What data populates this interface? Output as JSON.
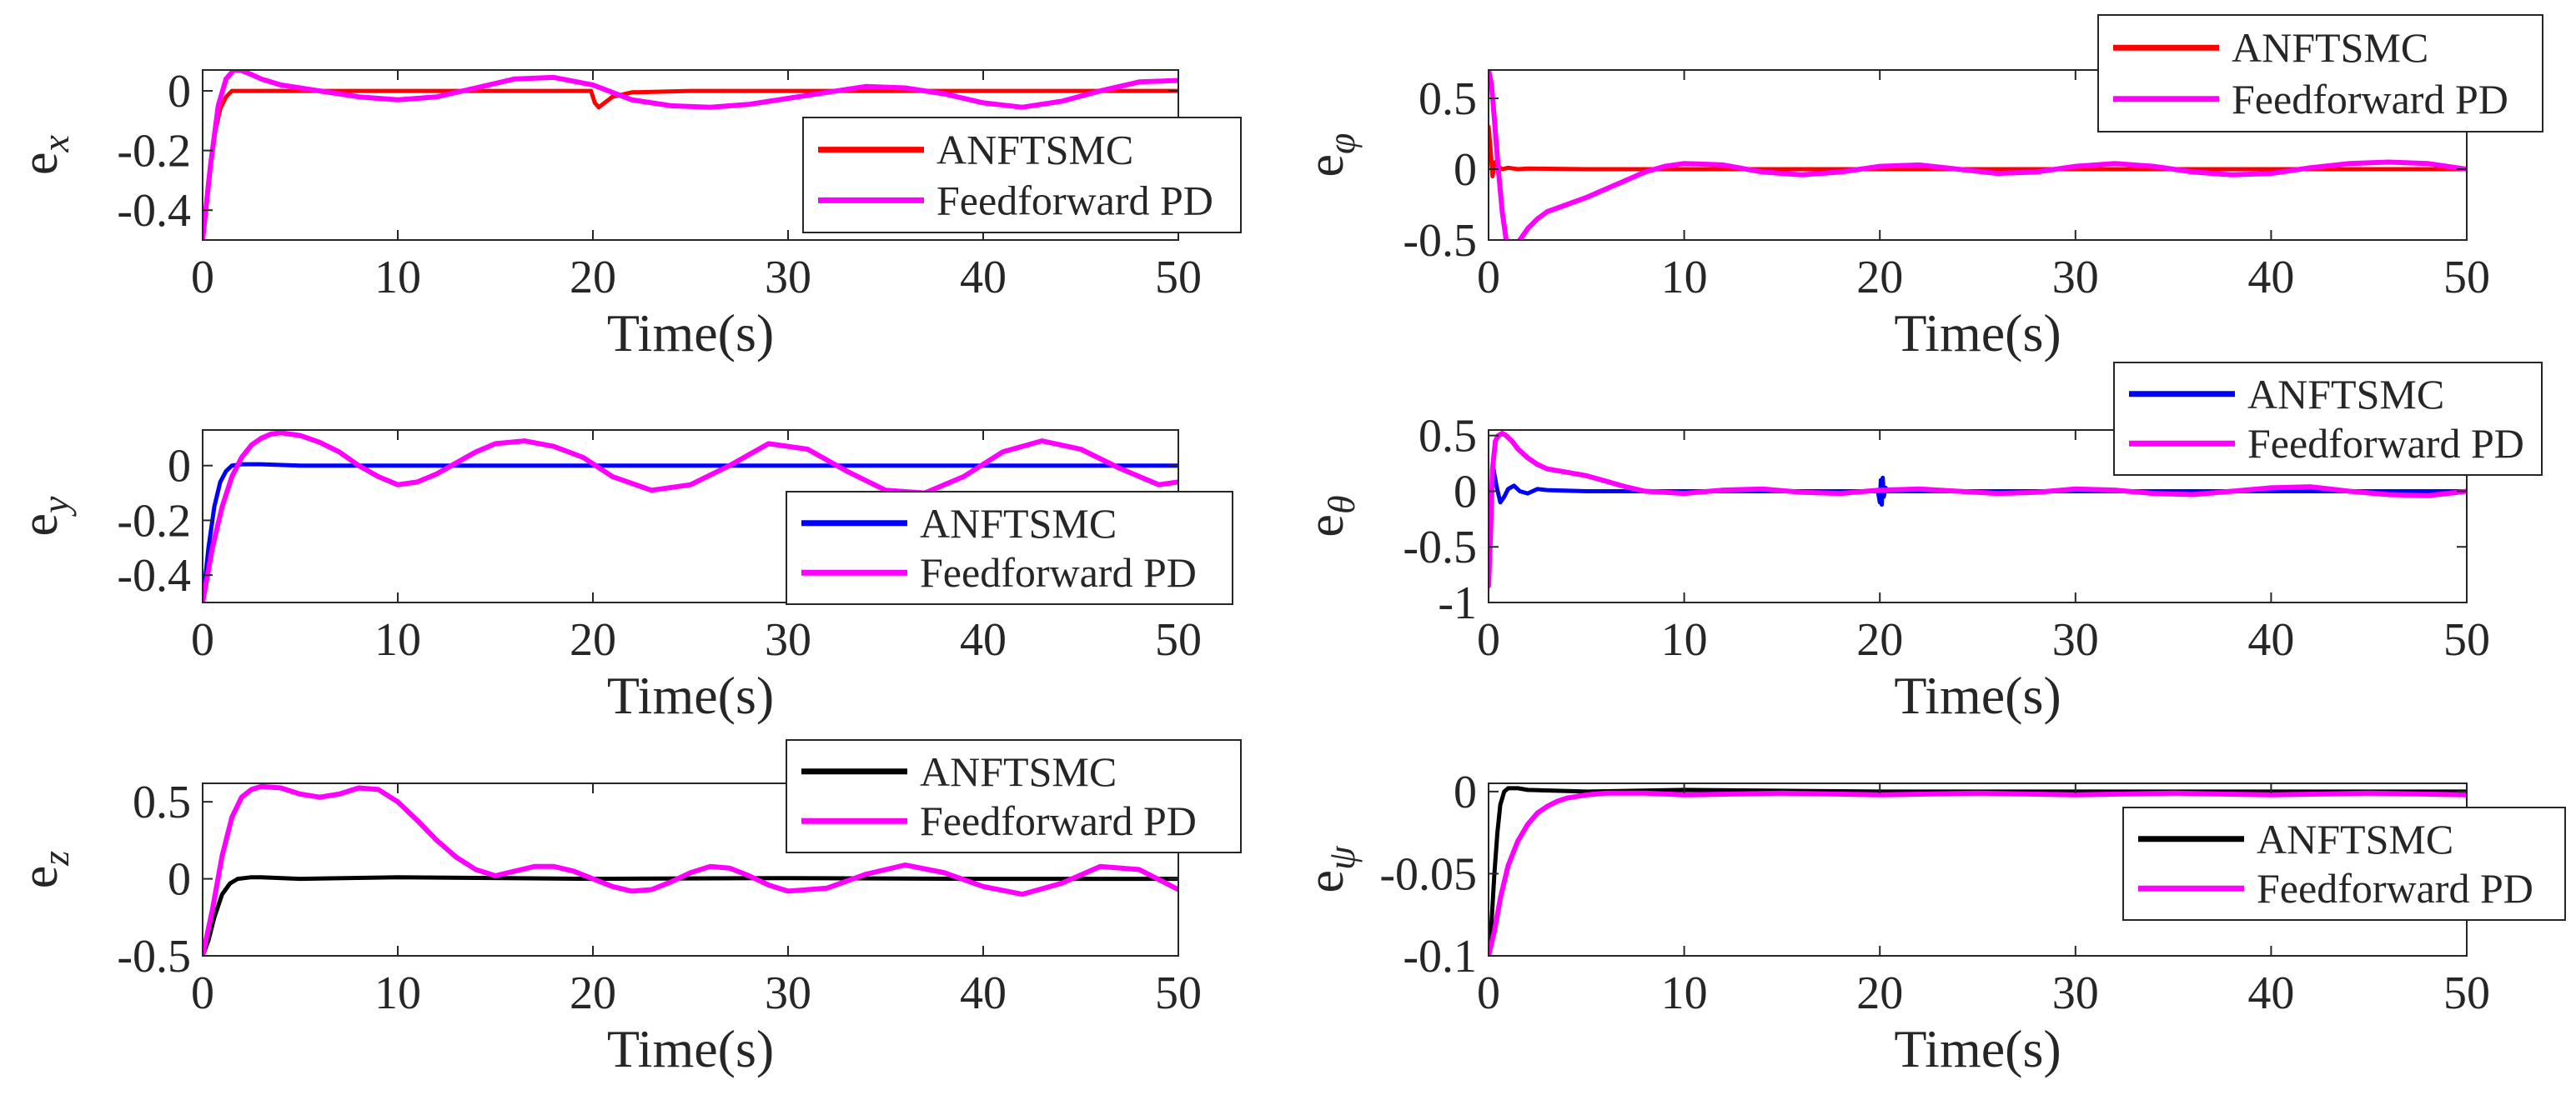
{
  "colors": {
    "pd": "#ff00ff",
    "anftsmc_x": "#ff0000",
    "anftsmc_y": "#0000ff",
    "anftsmc_z": "#000000",
    "axis": "#262626"
  },
  "chart_data": [
    {
      "type": "line",
      "id": "ex",
      "ylabel": "e",
      "ylabel_sub": "x",
      "xlabel": "Time(s)",
      "xlim": [
        0,
        50
      ],
      "ylim": [
        -0.5,
        0.07
      ],
      "xticks": [
        0,
        10,
        20,
        30,
        40,
        50
      ],
      "yticks": [
        -0.4,
        -0.2,
        0
      ],
      "ytick_labels": [
        "-0.4",
        "-0.2",
        "0"
      ],
      "legend": "right-middle",
      "series": [
        {
          "name": "ANFTSMC",
          "color": "#ff0000",
          "x": [
            0,
            0.3,
            0.6,
            0.9,
            1.2,
            1.5,
            2,
            3,
            5,
            10,
            15,
            19.9,
            20.1,
            20.3,
            20.6,
            21,
            22,
            25,
            30,
            35,
            40,
            45,
            50
          ],
          "y": [
            -0.5,
            -0.3,
            -0.15,
            -0.06,
            -0.02,
            0,
            0,
            0,
            0,
            0,
            0,
            0,
            -0.04,
            -0.055,
            -0.04,
            -0.02,
            -0.005,
            0,
            0,
            0,
            0,
            0,
            0
          ]
        },
        {
          "name": "Feedforward PD",
          "color": "#ff00ff",
          "x": [
            0,
            0.4,
            0.8,
            1.2,
            1.6,
            2,
            2.5,
            3,
            4,
            6,
            8,
            10,
            12,
            14,
            16,
            18,
            20,
            22,
            24,
            26,
            28,
            30,
            32,
            34,
            36,
            38,
            40,
            42,
            44,
            46,
            48,
            50
          ],
          "y": [
            -0.5,
            -0.25,
            -0.05,
            0.04,
            0.07,
            0.068,
            0.055,
            0.04,
            0.02,
            0.0,
            -0.02,
            -0.03,
            -0.02,
            0.01,
            0.04,
            0.045,
            0.02,
            -0.03,
            -0.05,
            -0.055,
            -0.045,
            -0.025,
            -0.005,
            0.015,
            0.01,
            -0.01,
            -0.04,
            -0.055,
            -0.035,
            0.0,
            0.03,
            0.035
          ]
        }
      ]
    },
    {
      "type": "line",
      "id": "ey",
      "ylabel": "e",
      "ylabel_sub": "y",
      "xlabel": "Time(s)",
      "xlim": [
        0,
        50
      ],
      "ylim": [
        -0.5,
        0.13
      ],
      "xticks": [
        0,
        10,
        20,
        30,
        40,
        50
      ],
      "yticks": [
        -0.4,
        -0.2,
        0
      ],
      "ytick_labels": [
        "-0.4",
        "-0.2",
        "0"
      ],
      "legend": "bottom-right",
      "series": [
        {
          "name": "ANFTSMC",
          "color": "#0000ff",
          "x": [
            0,
            0.3,
            0.6,
            0.9,
            1.2,
            1.5,
            2,
            3,
            5,
            10,
            20,
            30,
            40,
            50
          ],
          "y": [
            -0.5,
            -0.3,
            -0.15,
            -0.06,
            -0.02,
            0,
            0.005,
            0.005,
            0,
            0,
            0,
            0,
            0,
            0
          ]
        },
        {
          "name": "Feedforward PD",
          "color": "#ff00ff",
          "x": [
            0,
            0.5,
            1,
            1.5,
            2,
            2.5,
            3,
            3.5,
            4,
            5,
            6,
            7,
            8,
            9,
            10,
            11,
            12,
            13,
            14,
            15,
            16.5,
            18,
            19.5,
            21,
            23,
            25,
            27,
            29,
            31,
            33,
            35,
            37,
            39,
            41,
            43,
            45,
            47,
            49,
            50
          ],
          "y": [
            -0.5,
            -0.3,
            -0.15,
            -0.04,
            0.03,
            0.075,
            0.1,
            0.115,
            0.12,
            0.11,
            0.085,
            0.05,
            0.0,
            -0.04,
            -0.07,
            -0.06,
            -0.03,
            0.01,
            0.05,
            0.08,
            0.09,
            0.07,
            0.03,
            -0.04,
            -0.09,
            -0.07,
            0.0,
            0.08,
            0.06,
            -0.02,
            -0.09,
            -0.1,
            -0.04,
            0.05,
            0.09,
            0.06,
            -0.01,
            -0.07,
            -0.06
          ]
        }
      ]
    },
    {
      "type": "line",
      "id": "ez",
      "ylabel": "e",
      "ylabel_sub": "z",
      "xlabel": "Time(s)",
      "xlim": [
        0,
        50
      ],
      "ylim": [
        -0.5,
        0.62
      ],
      "xticks": [
        0,
        10,
        20,
        30,
        40,
        50
      ],
      "yticks": [
        -0.5,
        0,
        0.5
      ],
      "ytick_labels": [
        "-0.5",
        "0",
        "0.5"
      ],
      "legend": "top-right",
      "series": [
        {
          "name": "ANFTSMC",
          "color": "#000000",
          "x": [
            0,
            0.3,
            0.6,
            1,
            1.4,
            1.8,
            2.5,
            3,
            5,
            10,
            20,
            30,
            40,
            50
          ],
          "y": [
            -0.5,
            -0.4,
            -0.25,
            -0.1,
            -0.03,
            0,
            0.01,
            0.01,
            0,
            0.01,
            0,
            0.005,
            0,
            0
          ]
        },
        {
          "name": "Feedforward PD",
          "color": "#ff00ff",
          "x": [
            0,
            0.5,
            1,
            1.5,
            2,
            2.5,
            3,
            4,
            5,
            6,
            7,
            8,
            9,
            10,
            11,
            12,
            13,
            14,
            15,
            16,
            17,
            18,
            19,
            20,
            21,
            22,
            23,
            24,
            25,
            26,
            27,
            28,
            29,
            30,
            32,
            34,
            36,
            38,
            40,
            42,
            44,
            46,
            48,
            50
          ],
          "y": [
            -0.5,
            -0.2,
            0.15,
            0.4,
            0.53,
            0.58,
            0.6,
            0.59,
            0.55,
            0.53,
            0.55,
            0.59,
            0.58,
            0.5,
            0.38,
            0.25,
            0.14,
            0.06,
            0.02,
            0.05,
            0.08,
            0.08,
            0.05,
            0.0,
            -0.05,
            -0.08,
            -0.07,
            -0.02,
            0.04,
            0.08,
            0.07,
            0.02,
            -0.04,
            -0.08,
            -0.06,
            0.03,
            0.09,
            0.04,
            -0.05,
            -0.1,
            -0.03,
            0.08,
            0.06,
            -0.07
          ]
        }
      ]
    },
    {
      "type": "line",
      "id": "ephi",
      "ylabel": "e",
      "ylabel_sub": "φ",
      "xlabel": "Time(s)",
      "xlim": [
        0,
        50
      ],
      "ylim": [
        -0.5,
        0.7
      ],
      "xticks": [
        0,
        10,
        20,
        30,
        40,
        50
      ],
      "yticks": [
        -0.5,
        0,
        0.5
      ],
      "ytick_labels": [
        "-0.5",
        "0",
        "0.5"
      ],
      "legend": "top-right",
      "series": [
        {
          "name": "ANFTSMC",
          "color": "#ff0000",
          "x": [
            0,
            0.1,
            0.2,
            0.35,
            0.5,
            0.7,
            1,
            1.5,
            2,
            5,
            10,
            20,
            30,
            40,
            50
          ],
          "y": [
            0.3,
            0.15,
            -0.05,
            0.05,
            0.02,
            0.0,
            0.01,
            0,
            0.005,
            0,
            0,
            0,
            0,
            0,
            0
          ]
        },
        {
          "name": "Feedforward PD",
          "color": "#ff00ff",
          "x": [
            0,
            0.15,
            0.3,
            0.5,
            0.7,
            0.9,
            1.1,
            1.3,
            1.6,
            2,
            2.5,
            3,
            4,
            5,
            6,
            7,
            8,
            9,
            10,
            12,
            14,
            16,
            18,
            20,
            22,
            24,
            26,
            28,
            30,
            32,
            34,
            36,
            38,
            40,
            42,
            44,
            46,
            48,
            50
          ],
          "y": [
            0.7,
            0.6,
            0.35,
            0.0,
            -0.3,
            -0.5,
            -0.55,
            -0.55,
            -0.5,
            -0.42,
            -0.35,
            -0.3,
            -0.25,
            -0.2,
            -0.14,
            -0.08,
            -0.02,
            0.02,
            0.04,
            0.03,
            -0.02,
            -0.04,
            -0.02,
            0.02,
            0.03,
            0.0,
            -0.03,
            -0.02,
            0.02,
            0.04,
            0.02,
            -0.02,
            -0.04,
            -0.03,
            0.01,
            0.04,
            0.05,
            0.04,
            0.0
          ]
        }
      ]
    },
    {
      "type": "line",
      "id": "etheta",
      "ylabel": "e",
      "ylabel_sub": "θ",
      "xlabel": "Time(s)",
      "xlim": [
        0,
        50
      ],
      "ylim": [
        -1,
        0.55
      ],
      "xticks": [
        0,
        10,
        20,
        30,
        40,
        50
      ],
      "yticks": [
        -1,
        -0.5,
        0,
        0.5
      ],
      "ytick_labels": [
        "-1",
        "-0.5",
        "0",
        "0.5"
      ],
      "legend": "top-right",
      "series": [
        {
          "name": "ANFTSMC",
          "color": "#0000ff",
          "x": [
            0,
            0.1,
            0.25,
            0.4,
            0.6,
            0.8,
            1,
            1.3,
            1.6,
            2,
            2.5,
            3,
            5,
            10,
            19.9,
            20.0,
            20.05,
            20.1,
            20.15,
            20.2,
            20.3,
            20.4,
            21,
            30,
            40,
            50
          ],
          "y": [
            -0.05,
            -0.2,
            0.2,
            0.05,
            -0.1,
            -0.05,
            0.02,
            0.05,
            0.0,
            -0.02,
            0.02,
            0.01,
            0,
            0,
            0,
            -0.1,
            0.1,
            -0.12,
            0.12,
            -0.05,
            0.03,
            0,
            0,
            0,
            0,
            0
          ]
        },
        {
          "name": "Feedforward PD",
          "color": "#ff00ff",
          "x": [
            0,
            0.1,
            0.2,
            0.35,
            0.5,
            0.7,
            0.9,
            1.2,
            1.5,
            2,
            2.5,
            3,
            4,
            5,
            6,
            7,
            8,
            9,
            10,
            12,
            14,
            16,
            18,
            20,
            22,
            24,
            26,
            28,
            30,
            32,
            34,
            36,
            38,
            40,
            42,
            44,
            46,
            48,
            50
          ],
          "y": [
            -0.85,
            -0.4,
            0.2,
            0.45,
            0.5,
            0.52,
            0.5,
            0.45,
            0.38,
            0.3,
            0.24,
            0.2,
            0.17,
            0.14,
            0.09,
            0.04,
            0.0,
            -0.01,
            -0.02,
            0.01,
            0.02,
            -0.01,
            -0.02,
            0.01,
            0.02,
            0.0,
            -0.02,
            -0.01,
            0.02,
            0.01,
            -0.02,
            -0.03,
            0.0,
            0.03,
            0.04,
            0.0,
            -0.03,
            -0.04,
            0.0
          ]
        }
      ]
    },
    {
      "type": "line",
      "id": "epsi",
      "ylabel": "e",
      "ylabel_sub": "ψ",
      "xlabel": "Time(s)",
      "xlim": [
        0,
        50
      ],
      "ylim": [
        -0.1,
        0.005
      ],
      "xticks": [
        0,
        10,
        20,
        30,
        40,
        50
      ],
      "yticks": [
        -0.1,
        -0.05,
        0
      ],
      "ytick_labels": [
        "-0.1",
        "-0.05",
        "0"
      ],
      "legend": "bottom-right",
      "series": [
        {
          "name": "ANFTSMC",
          "color": "#000000",
          "x": [
            0,
            0.15,
            0.3,
            0.45,
            0.6,
            0.8,
            1,
            1.5,
            2,
            5,
            10,
            20,
            30,
            40,
            50
          ],
          "y": [
            -0.1,
            -0.08,
            -0.05,
            -0.025,
            -0.008,
            0.0,
            0.002,
            0.002,
            0.001,
            0.0,
            0.001,
            0.0,
            0.0,
            0.0,
            0.0
          ]
        },
        {
          "name": "Feedforward PD",
          "color": "#ff00ff",
          "x": [
            0,
            0.3,
            0.6,
            1,
            1.5,
            2,
            2.5,
            3,
            3.5,
            4,
            5,
            6,
            8,
            10,
            15,
            20,
            25,
            30,
            35,
            40,
            45,
            50
          ],
          "y": [
            -0.1,
            -0.085,
            -0.065,
            -0.045,
            -0.03,
            -0.02,
            -0.013,
            -0.009,
            -0.006,
            -0.004,
            -0.002,
            -0.001,
            -0.001,
            -0.002,
            -0.001,
            -0.002,
            -0.001,
            -0.002,
            -0.001,
            -0.002,
            -0.001,
            -0.002
          ]
        }
      ]
    }
  ]
}
